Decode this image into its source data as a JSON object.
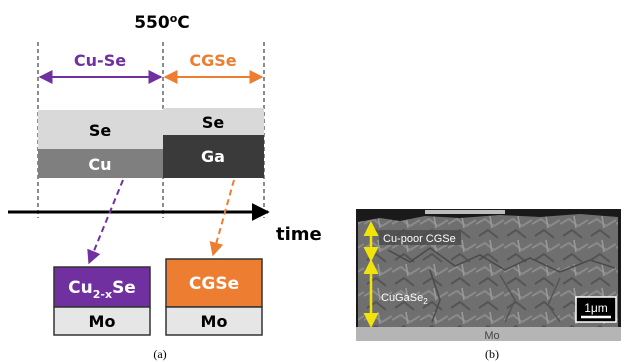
{
  "panel_a": {
    "temperature": "550",
    "temperature_unit_sup": "o",
    "temperature_unit": "C",
    "stage1_label": "Cu-Se",
    "stage2_label": "CGSe",
    "stage1_layers": {
      "top": "Se",
      "bottom": "Cu"
    },
    "stage2_layers": {
      "top": "Se",
      "bottom": "Ga"
    },
    "time_label": "time",
    "result1": {
      "base": "Cu",
      "sub": "2-x",
      "tail": "Se",
      "substrate": "Mo"
    },
    "result2": {
      "top": "CGSe",
      "substrate": "Mo"
    },
    "caption": "(a)",
    "colors": {
      "purple": "#7030A0",
      "orange": "#ED7D31",
      "se_gray": "#D9D9D9",
      "cu_gray": "#7F7F7F",
      "ga_dark": "#3A3A3A"
    }
  },
  "panel_b": {
    "label_top": "Cu-poor CGSe",
    "label_main_base": "CuGaSe",
    "label_main_sub": "2",
    "scale_bar": "1μm",
    "substrate": "Mo",
    "caption": "(b)",
    "colors": {
      "arrow": "#F2E30A"
    }
  }
}
